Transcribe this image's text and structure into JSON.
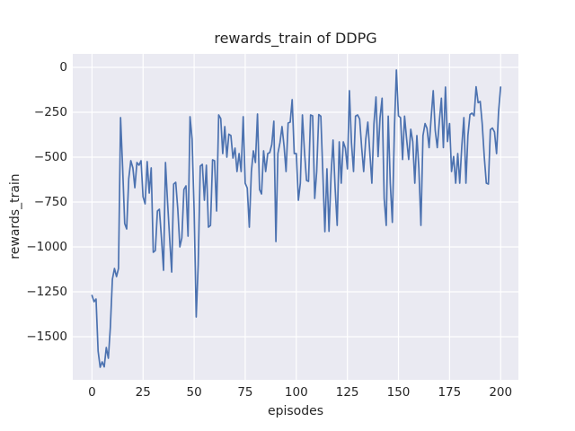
{
  "figure": {
    "title": "rewards_train of DDPG",
    "xlabel": "episodes",
    "ylabel": "rewards_train"
  },
  "chart_data": {
    "type": "line",
    "title": "rewards_train of DDPG",
    "xlabel": "episodes",
    "ylabel": "rewards_train",
    "grid": true,
    "legend": false,
    "style": "seaborn-darkgrid",
    "plot_background": "#eaeaf2",
    "grid_color": "#ffffff",
    "line_color": "#4c72b0",
    "text_color": "#262626",
    "xlim": [
      -9.4,
      208.7
    ],
    "ylim": [
      -1740,
      75
    ],
    "x_ticks": [
      0,
      25,
      50,
      75,
      100,
      125,
      150,
      175,
      200
    ],
    "y_ticks": [
      0,
      -250,
      -500,
      -750,
      -1000,
      -1250,
      -1500
    ],
    "series": [
      {
        "name": "rewards_train",
        "x0": 0,
        "dx": 1,
        "y": [
          -1270,
          -1305,
          -1290,
          -1580,
          -1670,
          -1640,
          -1668,
          -1560,
          -1620,
          -1450,
          -1180,
          -1120,
          -1165,
          -1120,
          -280,
          -560,
          -870,
          -900,
          -620,
          -520,
          -560,
          -670,
          -530,
          -545,
          -520,
          -720,
          -760,
          -525,
          -700,
          -560,
          -1030,
          -1020,
          -800,
          -790,
          -950,
          -1130,
          -530,
          -750,
          -950,
          -1140,
          -650,
          -640,
          -790,
          -1000,
          -950,
          -680,
          -660,
          -940,
          -275,
          -400,
          -800,
          -1390,
          -1100,
          -550,
          -540,
          -740,
          -545,
          -890,
          -880,
          -515,
          -520,
          -800,
          -265,
          -285,
          -480,
          -330,
          -500,
          -372,
          -380,
          -505,
          -450,
          -580,
          -480,
          -580,
          -275,
          -645,
          -672,
          -890,
          -580,
          -465,
          -530,
          -260,
          -680,
          -705,
          -465,
          -580,
          -480,
          -475,
          -430,
          -300,
          -970,
          -480,
          -420,
          -330,
          -440,
          -580,
          -310,
          -305,
          -180,
          -480,
          -480,
          -740,
          -645,
          -265,
          -470,
          -630,
          -635,
          -265,
          -270,
          -730,
          -580,
          -263,
          -272,
          -600,
          -915,
          -565,
          -913,
          -600,
          -405,
          -670,
          -880,
          -415,
          -645,
          -415,
          -450,
          -565,
          -130,
          -420,
          -580,
          -272,
          -265,
          -288,
          -450,
          -580,
          -400,
          -305,
          -480,
          -645,
          -315,
          -165,
          -497,
          -280,
          -172,
          -730,
          -880,
          -272,
          -645,
          -863,
          -340,
          -15,
          -270,
          -280,
          -513,
          -272,
          -400,
          -513,
          -345,
          -413,
          -645,
          -380,
          -560,
          -880,
          -380,
          -313,
          -340,
          -447,
          -280,
          -130,
          -350,
          -447,
          -300,
          -172,
          -447,
          -110,
          -413,
          -313,
          -580,
          -497,
          -645,
          -480,
          -645,
          -440,
          -280,
          -645,
          -380,
          -263,
          -255,
          -270,
          -108,
          -197,
          -190,
          -313,
          -497,
          -645,
          -650,
          -347,
          -338,
          -360,
          -480,
          -250,
          -110
        ]
      }
    ]
  }
}
